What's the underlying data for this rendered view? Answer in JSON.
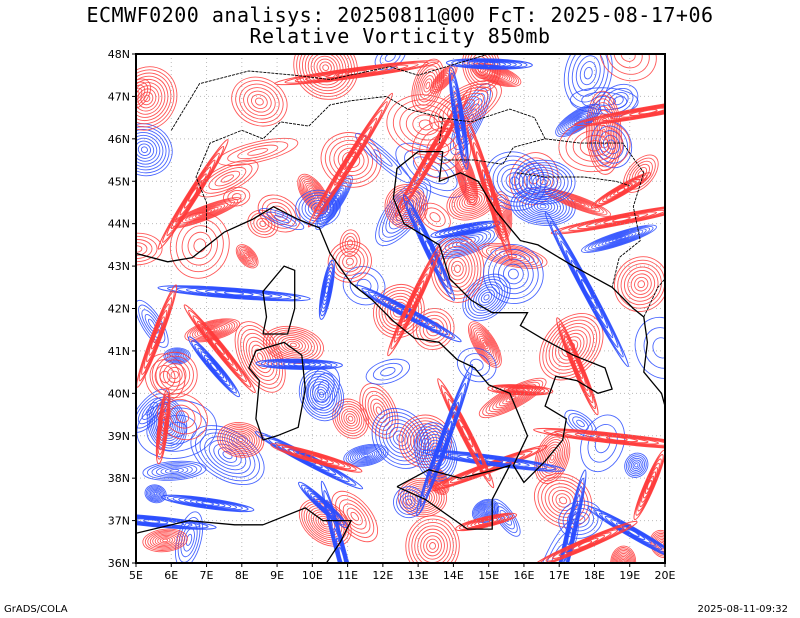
{
  "title": {
    "line1": "ECMWF0200 analisys: 20250811@00 FcT: 2025-08-17+06",
    "line2": "Relative Vorticity 850mb"
  },
  "axes": {
    "lat_labels": [
      "36N",
      "37N",
      "38N",
      "39N",
      "40N",
      "41N",
      "42N",
      "43N",
      "44N",
      "45N",
      "46N",
      "47N",
      "48N"
    ],
    "lon_labels": [
      "5E",
      "6E",
      "7E",
      "8E",
      "9E",
      "10E",
      "11E",
      "12E",
      "13E",
      "14E",
      "15E",
      "16E",
      "17E",
      "18E",
      "19E",
      "20E"
    ],
    "lat_range": [
      36,
      48
    ],
    "lon_range": [
      5,
      20
    ]
  },
  "colors": {
    "positive": "#ff3b3b",
    "negative": "#2a4cff",
    "coast": "#000000",
    "grid": "#a0a0a0"
  },
  "footer": {
    "left": "GrADS/COLA",
    "right": "2025-08-11-09:32"
  }
}
